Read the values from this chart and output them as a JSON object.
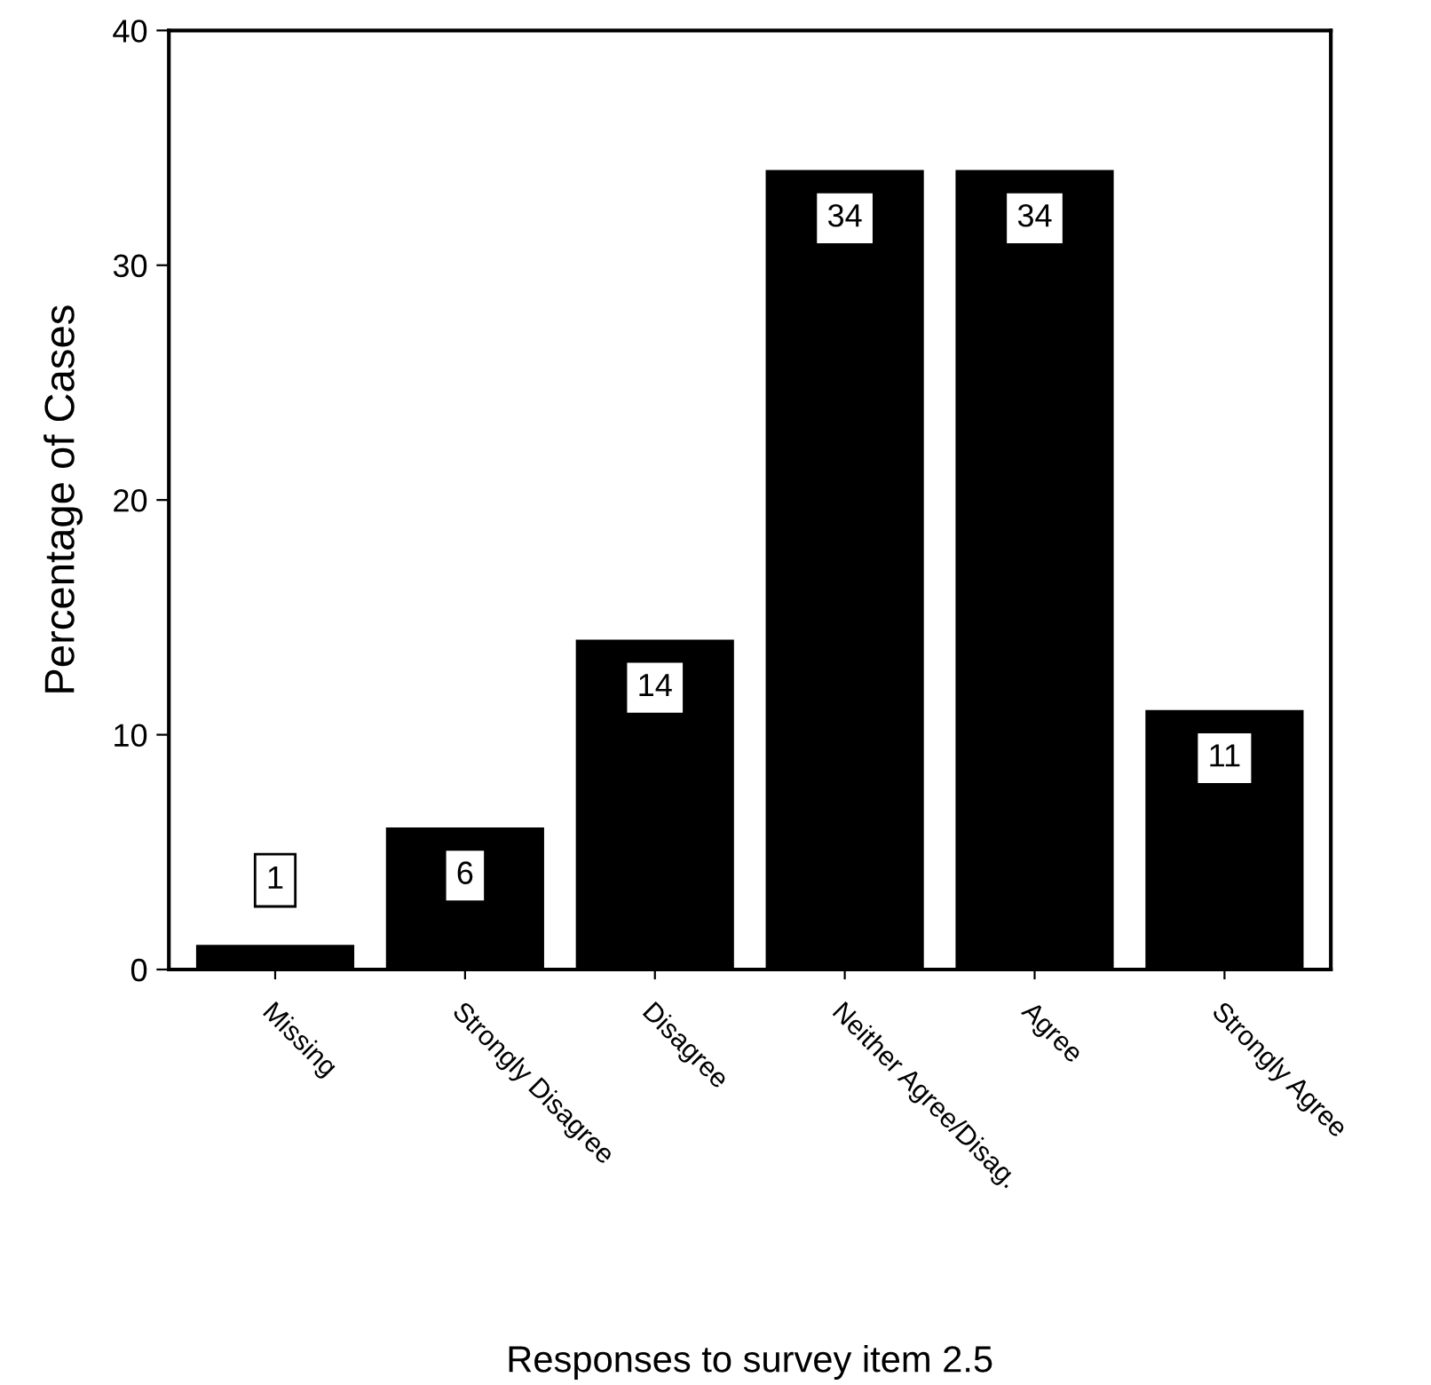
{
  "chart_data": {
    "type": "bar",
    "xlabel": "Responses to survey item 2.5",
    "ylabel": "Percentage of Cases",
    "categories": [
      "Missing",
      "Strongly Disagree",
      "Disagree",
      "Neither Agree/Disag.",
      "Agree",
      "Strongly Agree"
    ],
    "values": [
      1,
      6,
      14,
      34,
      34,
      11
    ],
    "color": "#000000",
    "ylim": [
      0,
      40
    ],
    "yticks": [
      0,
      10,
      20,
      30,
      40
    ],
    "grid": false,
    "data_labels": true
  }
}
